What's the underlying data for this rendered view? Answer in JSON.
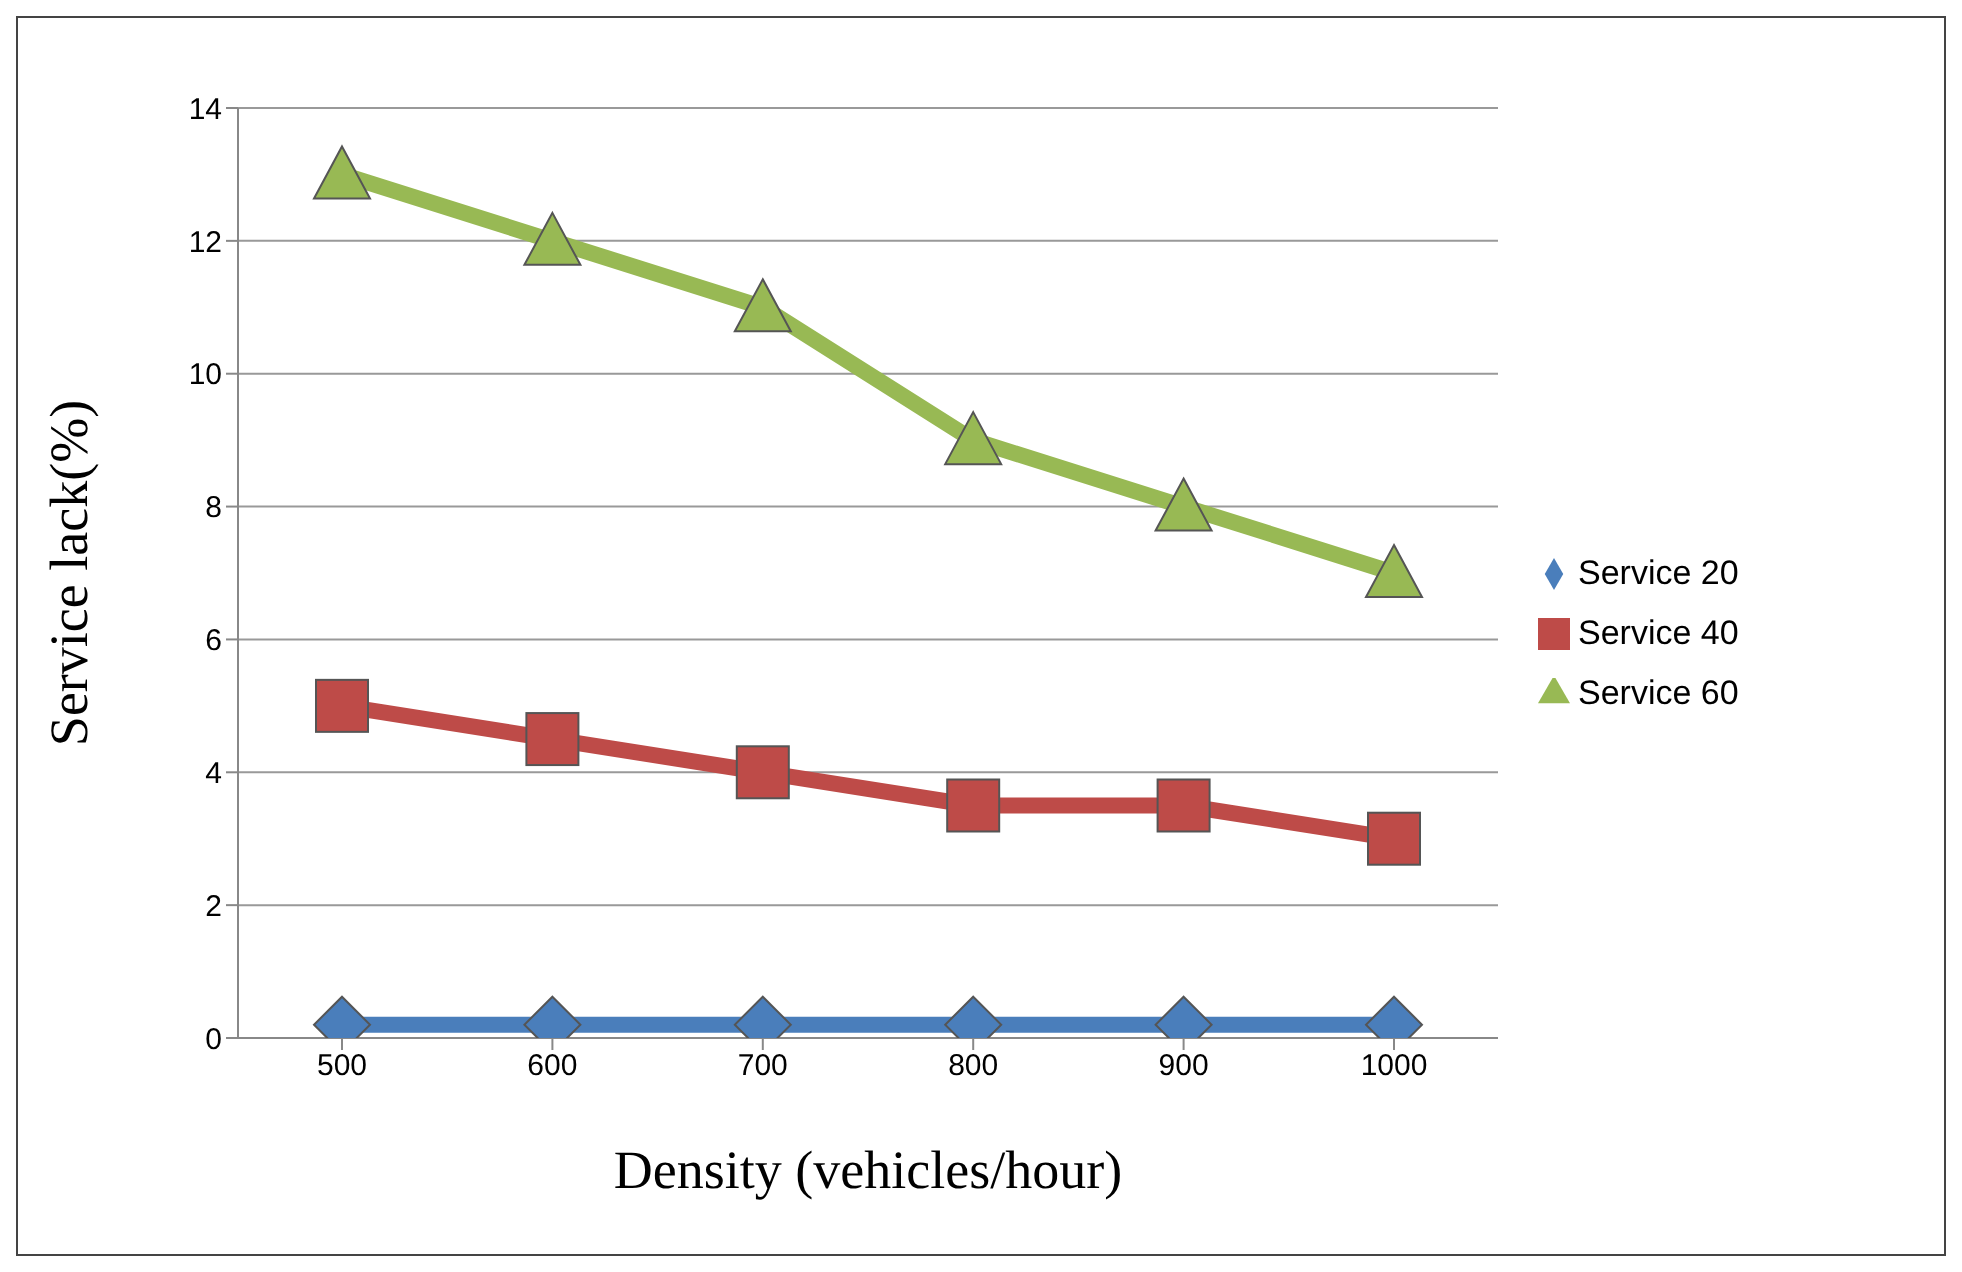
{
  "chart_data": {
    "type": "line",
    "xlabel": "Density (vehicles/hour)",
    "ylabel": "Service lack(%)",
    "categories": [
      "500",
      "600",
      "700",
      "800",
      "900",
      "1000"
    ],
    "series": [
      {
        "name": "Service 20",
        "color": "#4a7ebb",
        "marker": "diamond",
        "values": [
          0.2,
          0.2,
          0.2,
          0.2,
          0.2,
          0.2
        ]
      },
      {
        "name": "Service 40",
        "color": "#be4b48",
        "marker": "square",
        "values": [
          5,
          4.5,
          4,
          3.5,
          3.5,
          3
        ]
      },
      {
        "name": "Service 60",
        "color": "#98b954",
        "marker": "triangle",
        "values": [
          13,
          12,
          11,
          9,
          8,
          7
        ]
      }
    ],
    "ylim": [
      0,
      14
    ],
    "yticks": [
      0,
      2,
      4,
      6,
      8,
      10,
      12,
      14
    ],
    "grid": "y",
    "legend": "right",
    "line_style": "solid"
  }
}
